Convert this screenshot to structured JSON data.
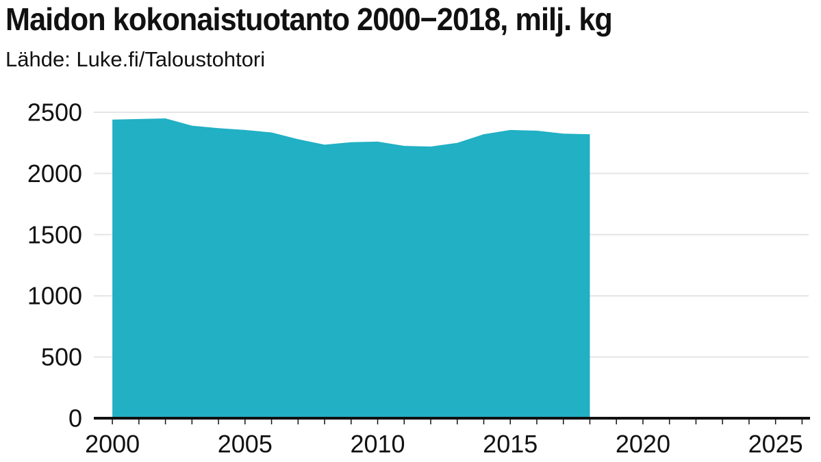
{
  "header": {
    "title": "Maidon kokonaistuotanto 2000−2018, milj. kg",
    "subtitle": "Lähde: Luke.fi/Taloustohtori"
  },
  "colors": {
    "area": "#21b0c4",
    "grid": "#e4e4e4",
    "axis": "#111111"
  },
  "chart_data": {
    "type": "area",
    "title": "Maidon kokonaistuotanto 2000−2018, milj. kg",
    "subtitle": "Lähde: Luke.fi/Taloustohtori",
    "xlabel": "",
    "ylabel": "",
    "x": [
      2000,
      2001,
      2002,
      2003,
      2004,
      2005,
      2006,
      2007,
      2008,
      2009,
      2010,
      2011,
      2012,
      2013,
      2014,
      2015,
      2016,
      2017,
      2018
    ],
    "values": [
      2440,
      2445,
      2450,
      2390,
      2370,
      2355,
      2335,
      2280,
      2235,
      2255,
      2260,
      2225,
      2220,
      2250,
      2320,
      2355,
      2350,
      2325,
      2320
    ],
    "xlim": [
      1999.3,
      2026.3
    ],
    "ylim": [
      0,
      2500
    ],
    "x_ticks": [
      2000,
      2005,
      2010,
      2015,
      2020,
      2025
    ],
    "y_ticks": [
      0,
      500,
      1000,
      1500,
      2000,
      2500
    ],
    "y_tick_labels": [
      "0",
      "500",
      "1000",
      "1500",
      "2000",
      "2500"
    ],
    "grid": true,
    "legend": "none"
  }
}
